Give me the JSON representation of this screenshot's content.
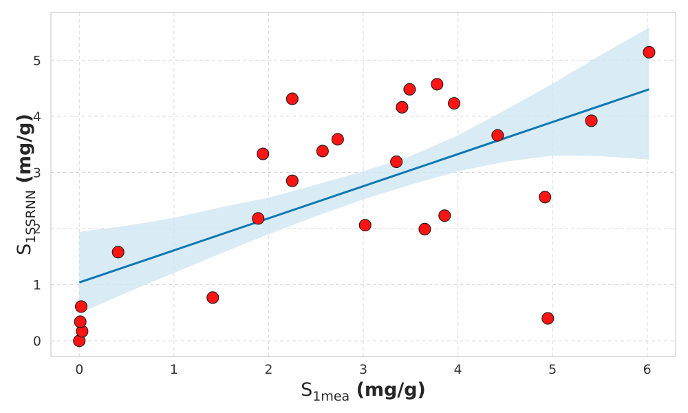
{
  "chart_data": {
    "type": "scatter",
    "title": "",
    "xlabel": {
      "main": "S",
      "sub": "1mea",
      "unit": " (mg/g)"
    },
    "ylabel": {
      "main": "S",
      "sub": "1SSRNN",
      "unit": " (mg/g)"
    },
    "xlim": [
      -0.3,
      6.3
    ],
    "ylim": [
      -0.28,
      5.85
    ],
    "x_ticks": [
      0,
      1,
      2,
      3,
      4,
      5,
      6
    ],
    "y_ticks": [
      0,
      1,
      2,
      3,
      4,
      5
    ],
    "x_tick_labels": [
      "0",
      "1",
      "2",
      "3",
      "4",
      "5",
      "6"
    ],
    "y_tick_labels": [
      "0",
      "1",
      "2",
      "3",
      "4",
      "5"
    ],
    "grid": true,
    "points": [
      {
        "x": 0.0,
        "y": 0.0
      },
      {
        "x": 0.03,
        "y": 0.17
      },
      {
        "x": 0.01,
        "y": 0.34
      },
      {
        "x": 0.02,
        "y": 0.61
      },
      {
        "x": 0.41,
        "y": 1.58
      },
      {
        "x": 1.41,
        "y": 0.77
      },
      {
        "x": 1.89,
        "y": 2.18
      },
      {
        "x": 1.94,
        "y": 3.33
      },
      {
        "x": 2.25,
        "y": 4.31
      },
      {
        "x": 2.25,
        "y": 2.85
      },
      {
        "x": 2.57,
        "y": 3.38
      },
      {
        "x": 2.73,
        "y": 3.59
      },
      {
        "x": 3.02,
        "y": 2.06
      },
      {
        "x": 3.35,
        "y": 3.19
      },
      {
        "x": 3.41,
        "y": 4.16
      },
      {
        "x": 3.49,
        "y": 4.48
      },
      {
        "x": 3.65,
        "y": 1.99
      },
      {
        "x": 3.78,
        "y": 4.57
      },
      {
        "x": 3.86,
        "y": 2.23
      },
      {
        "x": 3.96,
        "y": 4.23
      },
      {
        "x": 4.42,
        "y": 3.66
      },
      {
        "x": 4.92,
        "y": 2.56
      },
      {
        "x": 4.95,
        "y": 0.4
      },
      {
        "x": 5.41,
        "y": 3.92
      },
      {
        "x": 6.02,
        "y": 5.14
      }
    ],
    "regression_line": {
      "x": [
        0.0,
        6.02
      ],
      "y": [
        1.04,
        4.48
      ]
    },
    "confidence_band": {
      "x": [
        0.0,
        0.5,
        1.0,
        1.5,
        2.0,
        2.5,
        3.0,
        3.5,
        4.0,
        4.5,
        5.0,
        5.5,
        6.02
      ],
      "lower": [
        0.49,
        0.86,
        1.21,
        1.56,
        1.9,
        2.22,
        2.52,
        2.78,
        3.02,
        3.19,
        3.3,
        3.29,
        3.23
      ],
      "upper": [
        1.94,
        2.05,
        2.19,
        2.38,
        2.55,
        2.78,
        3.02,
        3.29,
        3.66,
        4.11,
        4.58,
        5.08,
        5.58
      ]
    },
    "colors": {
      "points_fill": "#ff1414",
      "points_edge": "#1a1a1a",
      "line": "#0a78b4",
      "band": "#cfe6f3"
    }
  }
}
